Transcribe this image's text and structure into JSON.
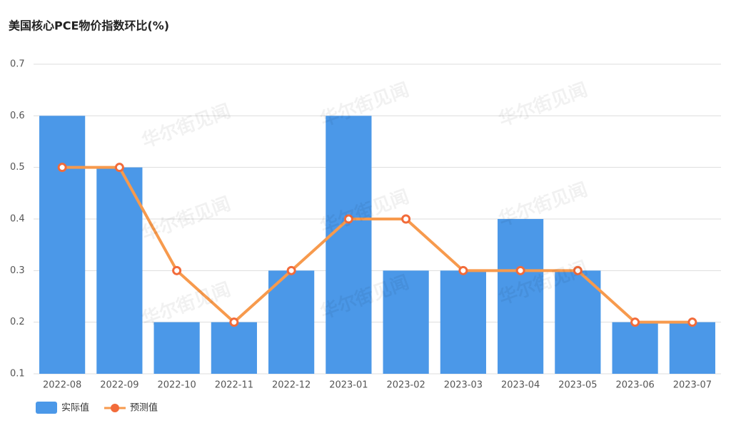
{
  "chart_data": {
    "type": "bar",
    "title": "美国核心PCE物价指数环比(%)",
    "watermark": "华尔街见闻",
    "categories": [
      "2022-08",
      "2022-09",
      "2022-10",
      "2022-11",
      "2022-12",
      "2023-01",
      "2023-02",
      "2023-03",
      "2023-04",
      "2023-05",
      "2023-06",
      "2023-07"
    ],
    "series": [
      {
        "name": "实际值",
        "type": "bar",
        "color": "#4b98e8",
        "values": [
          0.6,
          0.5,
          0.2,
          0.2,
          0.3,
          0.6,
          0.3,
          0.3,
          0.4,
          0.3,
          0.2,
          0.2
        ]
      },
      {
        "name": "预测值",
        "type": "line",
        "color": "#f79a4d",
        "values": [
          0.5,
          0.5,
          0.3,
          0.2,
          0.3,
          0.4,
          0.4,
          0.3,
          0.3,
          0.3,
          0.2,
          0.2
        ]
      }
    ],
    "ylim": [
      0.1,
      0.7
    ],
    "yticks": [
      0.1,
      0.2,
      0.3,
      0.4,
      0.5,
      0.6,
      0.7
    ],
    "grid": true,
    "legend": "bottom-left"
  }
}
